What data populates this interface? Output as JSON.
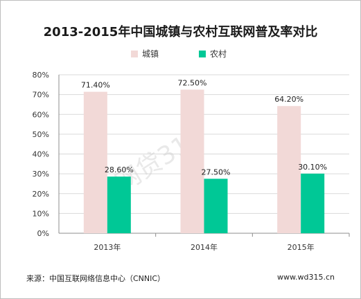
{
  "colors": {
    "urban": "#f2d9d7",
    "rural": "#00c896",
    "grid": "#d9d9d9",
    "axis": "#8c8c8c"
  },
  "footer": {
    "source": "来源：中国互联网络信息中心（CNNIC）",
    "site": "www.wd315.cn"
  },
  "watermark": "网贷315",
  "chart_data": {
    "type": "bar",
    "title": "2013-2015年中国城镇与农村互联网普及率对比",
    "categories": [
      "2013年",
      "2014年",
      "2015年"
    ],
    "series": [
      {
        "name": "城镇",
        "values": [
          71.4,
          72.5,
          64.2
        ],
        "labels": [
          "71.40%",
          "72.50%",
          "64.20%"
        ]
      },
      {
        "name": "农村",
        "values": [
          28.6,
          27.5,
          30.1
        ],
        "labels": [
          "28.60%",
          "27.50%",
          "30.10%"
        ]
      }
    ],
    "ylim": [
      0,
      80
    ],
    "yticks": [
      "0%",
      "10%",
      "20%",
      "30%",
      "40%",
      "50%",
      "60%",
      "70%",
      "80%"
    ],
    "xlabel": "",
    "ylabel": "",
    "grid": true,
    "legend": "top-center"
  }
}
